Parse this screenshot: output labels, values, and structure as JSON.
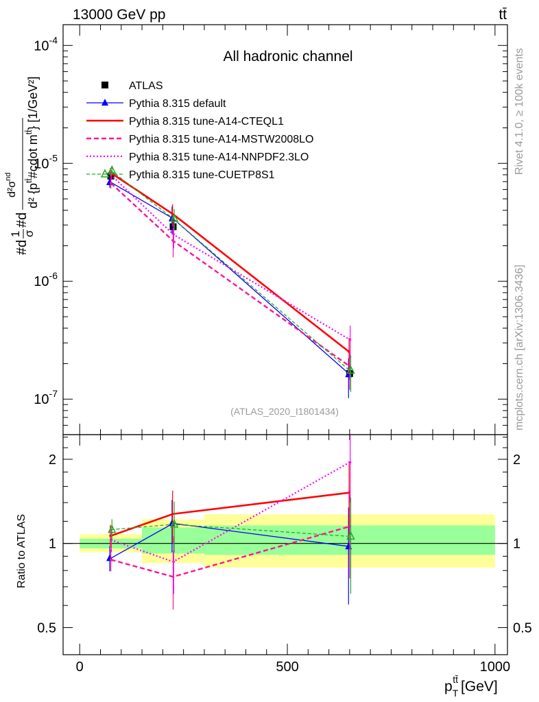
{
  "header": {
    "left": "13000 GeV pp",
    "right": "tt̄"
  },
  "side_labels": {
    "rivet": "Rivet 4.1.0, ≥ 100k events",
    "mcplots": "mcplots.cern.ch [arXiv:1306.3436]"
  },
  "chart_data": [
    {
      "type": "line",
      "title": "All hadronic channel",
      "watermark": "(ATLAS_2020_I1801434)",
      "ylabel": "#d1/σ#dd²σ^{nd}/d² {p_T^{tt̄} #cdot m^{tt̄}} [1/GeV²]",
      "yscale": "log",
      "ylim": [
        5e-08,
        0.00015
      ],
      "xlim": [
        -40,
        1030
      ],
      "ytick_labels": [
        "10^-7",
        "10^-6",
        "10^-5",
        "10^-4"
      ],
      "ytick_values": [
        1e-07,
        1e-06,
        1e-05,
        0.0001
      ],
      "x": [
        75,
        225,
        650
      ],
      "series": [
        {
          "name": "ATLAS",
          "color": "#000000",
          "style": "marker-square",
          "values": [
            7.8e-06,
            2.9e-06,
            1.65e-07
          ],
          "err": [
            6e-07,
            3.5e-07,
            2e-08
          ]
        },
        {
          "name": "Pythia 8.315 default",
          "color": "#0000ff",
          "style": "solid-thin-triangle",
          "values": [
            6.9e-06,
            3.4e-06,
            1.62e-07
          ],
          "err": [
            7e-07,
            9e-07,
            6e-08
          ]
        },
        {
          "name": "Pythia 8.315 tune-A14-CTEQL1",
          "color": "#ff0000",
          "style": "solid-thick",
          "values": [
            8.3e-06,
            3.7e-06,
            2.5e-07
          ],
          "err": [
            8e-07,
            8e-07,
            8e-08
          ]
        },
        {
          "name": "Pythia 8.315 tune-A14-MSTW2008LO",
          "color": "#ff1493",
          "style": "dashed",
          "values": [
            6.8e-06,
            2.2e-06,
            1.9e-07
          ],
          "err": [
            7e-07,
            6e-07,
            7e-08
          ]
        },
        {
          "name": "Pythia 8.315 tune-A14-NNPDF2.3LO",
          "color": "#ff00ff",
          "style": "dotted",
          "values": [
            8e-06,
            2.5e-06,
            3.2e-07
          ],
          "err": [
            8e-07,
            6e-07,
            1e-07
          ]
        },
        {
          "name": "Pythia 8.315 tune-CUETP8S1",
          "color": "#22aa22",
          "style": "dashed-thin-open-triangle",
          "values": [
            8.7e-06,
            3.4e-06,
            1.75e-07
          ],
          "err": [
            8e-07,
            7e-07,
            6e-08
          ]
        }
      ]
    },
    {
      "type": "line",
      "ylabel": "Ratio to ATLAS",
      "xlabel": "p_T^{tt̄} [GeV]",
      "yscale": "log",
      "ylim": [
        0.4,
        2.45
      ],
      "xlim": [
        -40,
        1030
      ],
      "ytick_labels": [
        "0.5",
        "1",
        "2"
      ],
      "ytick_values": [
        0.5,
        1,
        2
      ],
      "xtick_labels": [
        "0",
        "500",
        "1000"
      ],
      "xtick_values": [
        0,
        500,
        1000
      ],
      "bands": {
        "bins": [
          [
            0,
            150
          ],
          [
            150,
            300
          ],
          [
            300,
            1000
          ]
        ],
        "yellow": [
          [
            0.93,
            1.08
          ],
          [
            0.85,
            1.22
          ],
          [
            0.82,
            1.27
          ]
        ],
        "green": [
          [
            0.96,
            1.04
          ],
          [
            0.92,
            1.14
          ],
          [
            0.91,
            1.16
          ]
        ]
      },
      "x": [
        75,
        225,
        650
      ],
      "series": [
        {
          "name": "Pythia 8.315 default",
          "values": [
            0.885,
            1.18,
            0.975
          ],
          "err": [
            0.09,
            0.25,
            0.37
          ]
        },
        {
          "name": "Pythia 8.315 tune-A14-CTEQL1",
          "values": [
            1.065,
            1.275,
            1.52
          ],
          "err": [
            0.1,
            0.27,
            0.45
          ]
        },
        {
          "name": "Pythia 8.315 tune-A14-MSTW2008LO",
          "values": [
            0.875,
            0.76,
            1.15
          ],
          "err": [
            0.08,
            0.18,
            0.4
          ]
        },
        {
          "name": "Pythia 8.315 tune-A14-NNPDF2.3LO",
          "values": [
            1.03,
            0.86,
            1.95
          ],
          "err": [
            0.1,
            0.2,
            0.55
          ]
        },
        {
          "name": "Pythia 8.315 tune-CUETP8S1",
          "values": [
            1.12,
            1.17,
            1.06
          ],
          "err": [
            0.1,
            0.24,
            0.4
          ]
        }
      ]
    }
  ]
}
